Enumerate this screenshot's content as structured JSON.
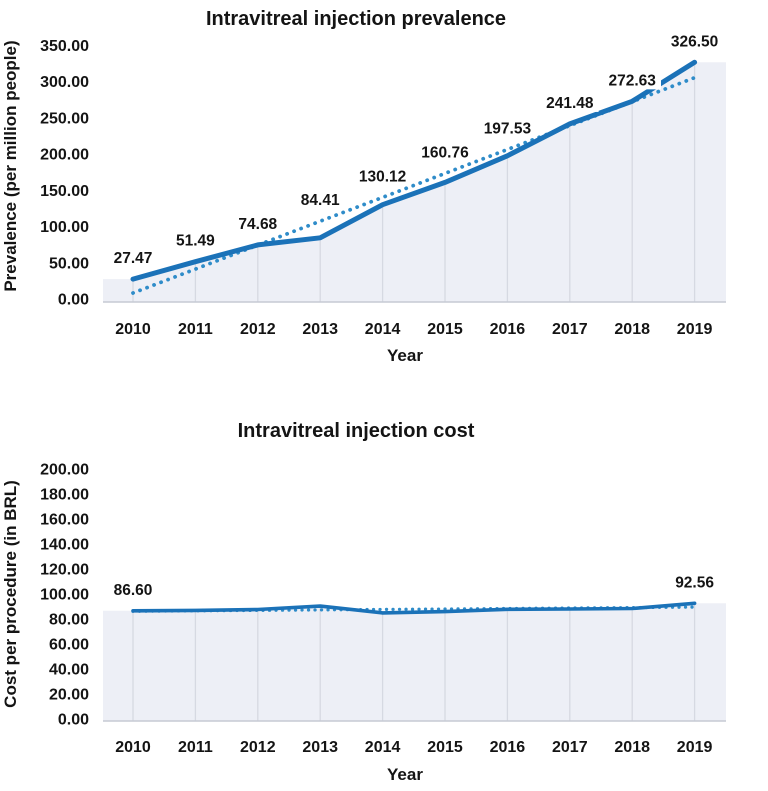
{
  "colors": {
    "line": "#1b72b8",
    "trend_dots": "#2f8cc9",
    "area_fill": "#edeff6",
    "gridline": "#d6d9e2",
    "axis_line": "#c6cad4",
    "text": "#141414",
    "label_background": "#ffffff",
    "background": "#ffffff"
  },
  "chart_data": [
    {
      "type": "line",
      "title": "Intravitreal injection prevalence",
      "xlabel": "Year",
      "ylabel": "Prevalence (per million people)",
      "categories": [
        "2010",
        "2011",
        "2012",
        "2013",
        "2014",
        "2015",
        "2016",
        "2017",
        "2018",
        "2019"
      ],
      "series": [
        {
          "name": "Prevalence",
          "style": "solid",
          "values": [
            27.47,
            51.49,
            74.68,
            84.41,
            130.12,
            160.76,
            197.53,
            241.48,
            272.63,
            326.5
          ]
        },
        {
          "name": "Linear trend",
          "style": "dotted",
          "values": [
            8.3,
            41.3,
            74.3,
            107.3,
            140.2,
            173.2,
            206.2,
            239.2,
            272.2,
            305.2
          ]
        }
      ],
      "point_labels": [
        "27.47",
        "51.49",
        "74.68",
        "84.41",
        "130.12",
        "160.76",
        "197.53",
        "241.48",
        "272.63",
        "326.50"
      ],
      "ytick_labels": [
        "0.00",
        "50.00",
        "100.00",
        "150.00",
        "200.00",
        "250.00",
        "300.00",
        "350.00"
      ],
      "ylim": [
        0,
        350
      ],
      "grid": "vertical gridlines under line fill only",
      "legend": "none"
    },
    {
      "type": "line",
      "title": "Intravitreal injection cost",
      "xlabel": "Year",
      "ylabel": "Cost per procedure (in BRL)",
      "categories": [
        "2010",
        "2011",
        "2012",
        "2013",
        "2014",
        "2015",
        "2016",
        "2017",
        "2018",
        "2019"
      ],
      "series": [
        {
          "name": "Cost per procedure",
          "style": "solid",
          "values": [
            86.6,
            86.9,
            87.6,
            90.3,
            84.9,
            85.9,
            87.8,
            88.0,
            88.4,
            92.56
          ]
        },
        {
          "name": "Linear trend",
          "style": "dotted",
          "values": [
            86.2,
            86.6,
            86.9,
            87.3,
            87.7,
            88.0,
            88.4,
            88.8,
            89.1,
            89.5
          ]
        }
      ],
      "point_labels": [
        "86.60",
        null,
        null,
        null,
        null,
        null,
        null,
        null,
        null,
        "92.56"
      ],
      "ytick_labels": [
        "0.00",
        "20.00",
        "40.00",
        "60.00",
        "80.00",
        "100.00",
        "120.00",
        "140.00",
        "160.00",
        "180.00",
        "200.00"
      ],
      "ylim": [
        0,
        200
      ],
      "grid": "vertical gridlines under line fill only",
      "legend": "none"
    }
  ]
}
